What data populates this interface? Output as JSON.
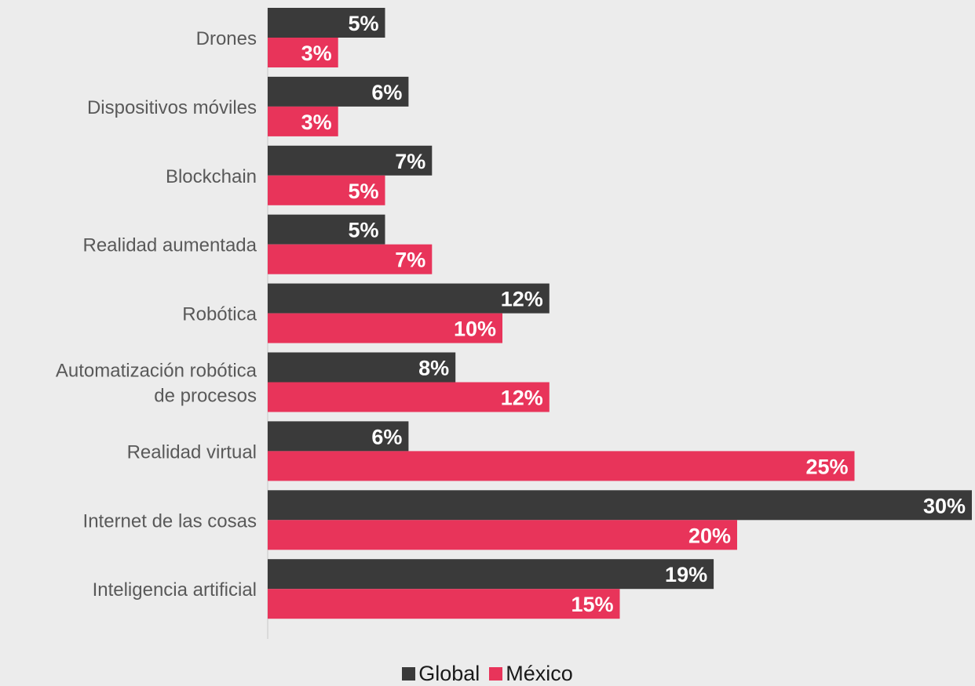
{
  "chart_data": {
    "type": "bar",
    "orientation": "horizontal",
    "categories": [
      [
        "Drones"
      ],
      [
        "Dispositivos móviles"
      ],
      [
        "Blockchain"
      ],
      [
        "Realidad aumentada"
      ],
      [
        "Robótica"
      ],
      [
        "Automatización robótica",
        "de procesos"
      ],
      [
        "Realidad virtual"
      ],
      [
        "Internet de las cosas"
      ],
      [
        "Inteligencia artificial"
      ]
    ],
    "series": [
      {
        "name": "Global",
        "color": "#3a3a3a",
        "values": [
          5,
          6,
          7,
          5,
          12,
          8,
          6,
          30,
          19
        ],
        "labels": [
          "5%",
          "6%",
          "7%",
          "5%",
          "12%",
          "8%",
          "6%",
          "30%",
          "19%"
        ]
      },
      {
        "name": "México",
        "color": "#e8345a",
        "values": [
          3,
          3,
          5,
          7,
          10,
          12,
          25,
          20,
          15
        ],
        "labels": [
          "3%",
          "3%",
          "5%",
          "7%",
          "10%",
          "12%",
          "25%",
          "20%",
          "15%"
        ]
      }
    ],
    "xlim": [
      0,
      30
    ],
    "grid": false,
    "legend_position": "bottom-center"
  }
}
